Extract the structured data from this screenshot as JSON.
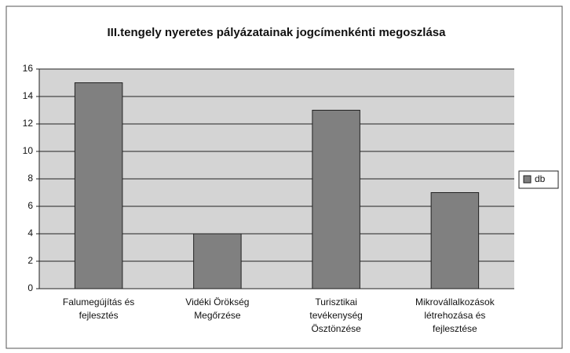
{
  "chart_data": {
    "type": "bar",
    "title": "III.tengely nyeretes pályázatainak jogcímenkénti megoszlása",
    "categories": [
      [
        "Falumegújítás és",
        "fejlesztés"
      ],
      [
        "Vidéki Örökség",
        "Megőrzése"
      ],
      [
        "Turisztikai",
        "tevékenység",
        "Ösztönzése"
      ],
      [
        "Mikrovállalkozások",
        "létrehozása és",
        "fejlesztése"
      ]
    ],
    "series": [
      {
        "name": "db",
        "color": "#808080",
        "values": [
          15,
          4,
          13,
          7
        ]
      }
    ],
    "ylim": [
      0,
      16
    ],
    "yticks": [
      0,
      2,
      4,
      6,
      8,
      10,
      12,
      14,
      16
    ],
    "grid": true,
    "legend": "right"
  }
}
